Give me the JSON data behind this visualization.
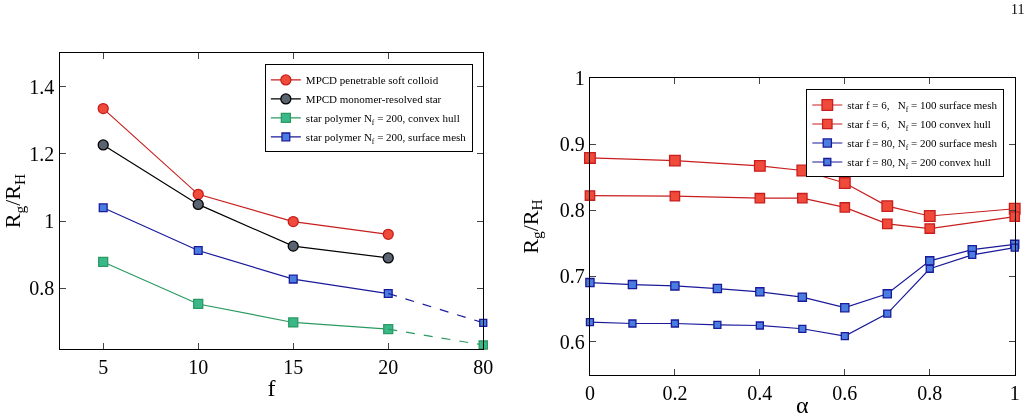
{
  "chart_data": [
    {
      "type": "line",
      "xlabel": "f",
      "ylabel": "R$_{g}$/R$_{H}$",
      "categories": [
        "5",
        "10",
        "15",
        "20",
        "80"
      ],
      "ylim": [
        0.62,
        1.5
      ],
      "yticks": [
        0.8,
        1,
        1.2,
        1.4
      ],
      "legend": "top right",
      "series": [
        {
          "name": "MPCD penetrable soft colloid",
          "color": "#c81e1e",
          "marker": "circle",
          "values": [
            1.335,
            1.08,
            0.999,
            0.961,
            null
          ]
        },
        {
          "name": "MPCD monomer-resolved star",
          "color": "#000000",
          "marker": "circle",
          "values": [
            1.227,
            1.05,
            0.926,
            0.891,
            null
          ]
        },
        {
          "name": "star polymer N$_{f}$ = 200, convex hull",
          "color": "#2a9a60",
          "marker": "square",
          "values": [
            0.879,
            0.754,
            0.699,
            0.679,
            null
          ]
        },
        {
          "name": "star polymer N$_{f}$ = 200, surface mesh",
          "color": "#1a1a9a",
          "marker": "square",
          "values": [
            1.04,
            0.913,
            0.828,
            0.785,
            null
          ]
        },
        {
          "type": "line",
          "color": "#2a9a60",
          "marker": "none",
          "line_style": "dashed",
          "values": [
            null,
            null,
            null,
            0.679,
            0.632
          ]
        },
        {
          "type": "line",
          "color": "#1a1a9a",
          "marker": "none",
          "line_style": "dashed",
          "values": [
            null,
            null,
            null,
            0.785,
            0.698
          ]
        },
        {
          "type": "scatter",
          "color": "#2a9a60",
          "marker": "square",
          "values": [
            null,
            null,
            null,
            null,
            0.632
          ]
        },
        {
          "type": "scatter",
          "color": "#1a1a9a",
          "marker": "square",
          "values": [
            null,
            null,
            null,
            null,
            0.698
          ]
        }
      ]
    },
    {
      "type": "line",
      "xlabel": "α",
      "ylabel": "R$_{g}$/R$_{H}$",
      "xlim": [
        0,
        1
      ],
      "xticks": [
        0,
        0.2,
        0.4,
        0.6,
        0.8,
        1
      ],
      "ylim": [
        0.55,
        1
      ],
      "yticks": [
        0.6,
        0.7,
        0.8,
        0.9,
        1
      ],
      "legend": "top right",
      "annotations": [
        "11"
      ],
      "series": [
        {
          "name": "star f = 6,   N$_{f}$ = 100 surface mesh",
          "color": "#c81e1e",
          "marker": "square",
          "x": [
            0,
            0.2,
            0.4,
            0.5,
            0.6,
            0.7,
            0.8,
            1
          ],
          "values": [
            0.879,
            0.875,
            0.867,
            0.86,
            0.841,
            0.806,
            0.791,
            0.802
          ]
        },
        {
          "name": "star f = 6,   N$_{f}$ = 100 convex hull",
          "color": "#c81e1e",
          "marker": "square",
          "x": [
            0,
            0.2,
            0.4,
            0.5,
            0.6,
            0.7,
            0.8,
            1
          ],
          "values": [
            0.822,
            0.821,
            0.818,
            0.818,
            0.804,
            0.779,
            0.772,
            0.79
          ]
        },
        {
          "name": "star f = 80, N$_{f}$ = 200 surface mesh",
          "color": "#1a1a9a",
          "marker": "square",
          "x": [
            0,
            0.1,
            0.2,
            0.3,
            0.4,
            0.5,
            0.6,
            0.7,
            0.8,
            0.9,
            1
          ],
          "values": [
            0.69,
            0.687,
            0.685,
            0.681,
            0.676,
            0.668,
            0.652,
            0.673,
            0.723,
            0.74,
            0.748
          ]
        },
        {
          "name": "star f = 80, N$_{f}$ = 200 convex hull",
          "color": "#1a1a9a",
          "marker": "square",
          "x": [
            0,
            0.1,
            0.2,
            0.3,
            0.4,
            0.5,
            0.6,
            0.7,
            0.8,
            0.9,
            1
          ],
          "values": [
            0.63,
            0.628,
            0.628,
            0.626,
            0.625,
            0.62,
            0.609,
            0.643,
            0.711,
            0.732,
            0.743
          ]
        }
      ]
    }
  ]
}
